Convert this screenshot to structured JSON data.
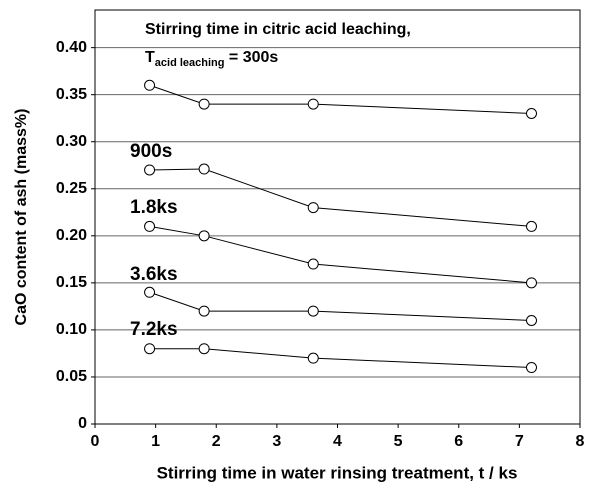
{
  "chart_data": {
    "type": "line",
    "annotation": "Stirring time in citric acid leaching,",
    "condition": {
      "symbol": "T",
      "subscript": "acid leaching",
      "text": " = 300s"
    },
    "x_label": "Stirring time in water rinsing treatment, t / ks",
    "y_label": "CaO content of ash (mass%)",
    "x": [
      0.9,
      1.8,
      3.6,
      7.2
    ],
    "series": [
      {
        "color": "#000000",
        "values": [
          0.36,
          0.34,
          0.34,
          0.33
        ]
      },
      {
        "name": "900s",
        "color": "#000000",
        "values": [
          0.27,
          0.271,
          0.23,
          0.21
        ]
      },
      {
        "name": "1.8ks",
        "color": "#000000",
        "values": [
          0.21,
          0.2,
          0.17,
          0.15
        ]
      },
      {
        "name": "3.6ks",
        "color": "#000000",
        "values": [
          0.14,
          0.12,
          0.12,
          0.11
        ]
      },
      {
        "name": "7.2ks",
        "color": "#000000",
        "values": [
          0.08,
          0.08,
          0.07,
          0.06
        ]
      }
    ],
    "xlim": [
      0,
      8
    ],
    "xticks": [
      0,
      1,
      2,
      3,
      4,
      5,
      6,
      7,
      8
    ],
    "ylim": [
      0,
      0.44
    ],
    "yticks": [
      0,
      0.05,
      {
        "value": 0.1,
        "label": "0.10"
      },
      0.15,
      {
        "value": 0.2,
        "label": "0.20"
      },
      0.25,
      {
        "value": 0.3,
        "label": "0.30"
      },
      0.35,
      {
        "value": 0.4,
        "label": "0.40"
      }
    ],
    "grid": true
  }
}
